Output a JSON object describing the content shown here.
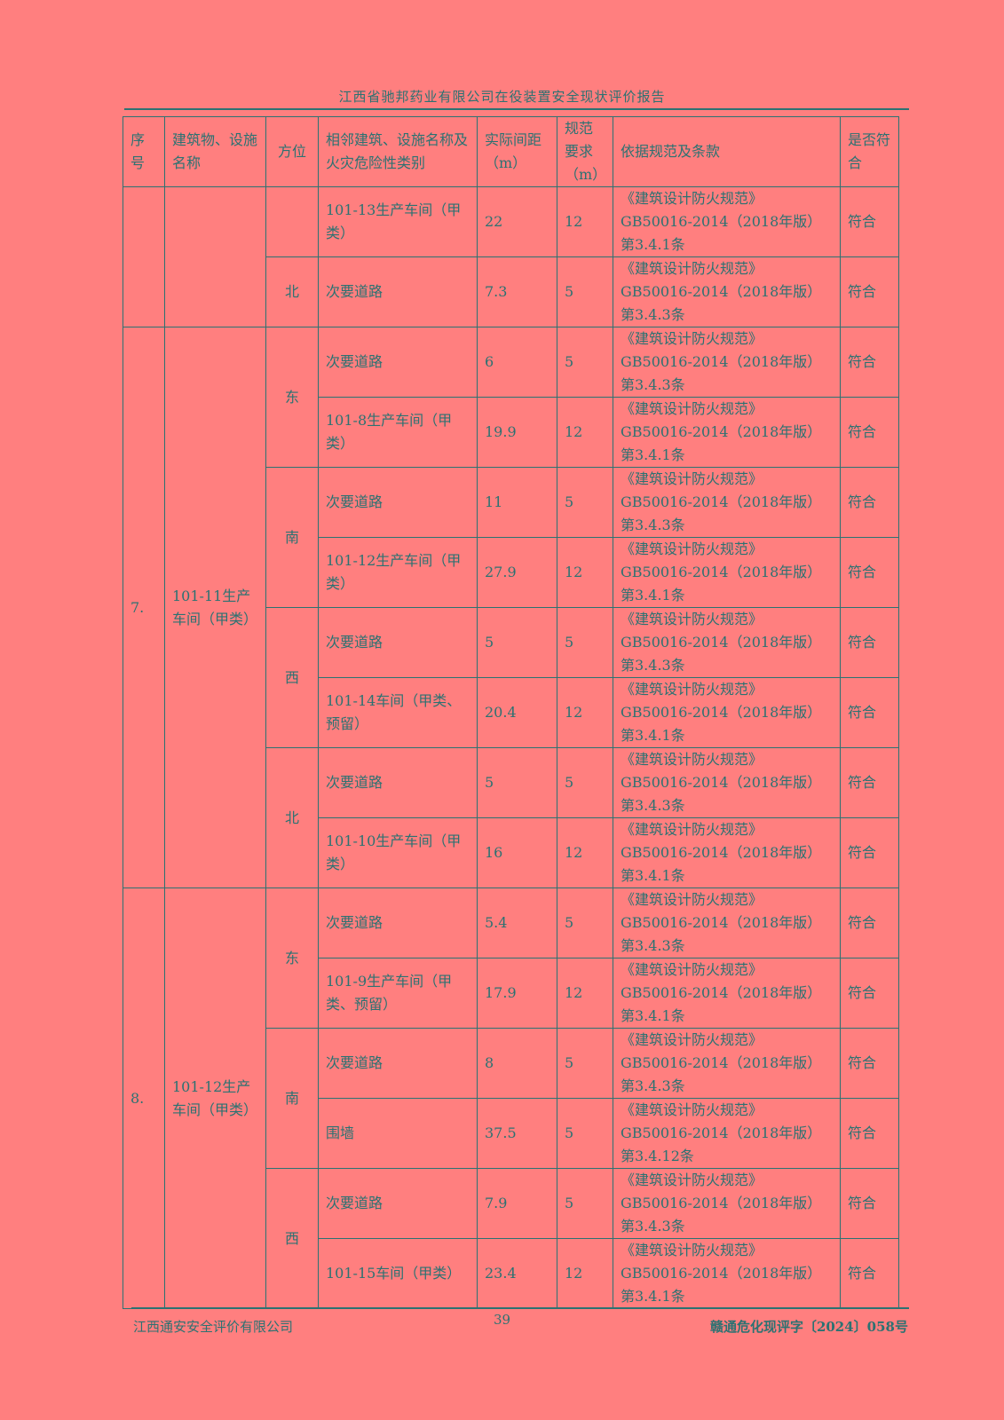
{
  "header": {
    "title": "江西省驰邦药业有限公司在役装置安全现状评价报告"
  },
  "table": {
    "columns": [
      "序号",
      "建筑物、设施名称",
      "方位",
      "相邻建筑、设施名称及火灾危险性类别",
      "实际间距（m）",
      "规范要求（m）",
      "依据规范及条款",
      "是否符合"
    ],
    "groups": [
      {
        "no": "",
        "name": "",
        "directions": [
          {
            "dir": "",
            "rows": [
              {
                "adjacent": "101-13生产车间（甲类）",
                "actual": "22",
                "required": "12",
                "basis": "《建筑设计防火规范》GB50016-2014（2018年版）第3.4.1条",
                "result": "符合"
              }
            ]
          },
          {
            "dir": "北",
            "rows": [
              {
                "adjacent": "次要道路",
                "actual": "7.3",
                "required": "5",
                "basis": "《建筑设计防火规范》GB50016-2014（2018年版）第3.4.3条",
                "result": "符合"
              }
            ]
          }
        ]
      },
      {
        "no": "7.",
        "name": "101-11生产车间（甲类）",
        "directions": [
          {
            "dir": "东",
            "rows": [
              {
                "adjacent": "次要道路",
                "actual": "6",
                "required": "5",
                "basis": "《建筑设计防火规范》GB50016-2014（2018年版）第3.4.3条",
                "result": "符合"
              },
              {
                "adjacent": "101-8生产车间（甲类）",
                "actual": "19.9",
                "required": "12",
                "basis": "《建筑设计防火规范》GB50016-2014（2018年版）第3.4.1条",
                "result": "符合"
              }
            ]
          },
          {
            "dir": "南",
            "rows": [
              {
                "adjacent": "次要道路",
                "actual": "11",
                "required": "5",
                "basis": "《建筑设计防火规范》GB50016-2014（2018年版）第3.4.3条",
                "result": "符合"
              },
              {
                "adjacent": "101-12生产车间（甲类）",
                "actual": "27.9",
                "required": "12",
                "basis": "《建筑设计防火规范》GB50016-2014（2018年版）第3.4.1条",
                "result": "符合"
              }
            ]
          },
          {
            "dir": "西",
            "rows": [
              {
                "adjacent": "次要道路",
                "actual": "5",
                "required": "5",
                "basis": "《建筑设计防火规范》GB50016-2014（2018年版）第3.4.3条",
                "result": "符合"
              },
              {
                "adjacent": "101-14车间（甲类、预留）",
                "actual": "20.4",
                "required": "12",
                "basis": "《建筑设计防火规范》GB50016-2014（2018年版）第3.4.1条",
                "result": "符合"
              }
            ]
          },
          {
            "dir": "北",
            "rows": [
              {
                "adjacent": "次要道路",
                "actual": "5",
                "required": "5",
                "basis": "《建筑设计防火规范》GB50016-2014（2018年版）第3.4.3条",
                "result": "符合"
              },
              {
                "adjacent": "101-10生产车间（甲类）",
                "actual": "16",
                "required": "12",
                "basis": "《建筑设计防火规范》GB50016-2014（2018年版）第3.4.1条",
                "result": "符合"
              }
            ]
          }
        ]
      },
      {
        "no": "8.",
        "name": "101-12生产车间（甲类）",
        "directions": [
          {
            "dir": "东",
            "rows": [
              {
                "adjacent": "次要道路",
                "actual": "5.4",
                "required": "5",
                "basis": "《建筑设计防火规范》GB50016-2014（2018年版）第3.4.3条",
                "result": "符合"
              },
              {
                "adjacent": "101-9生产车间（甲类、预留）",
                "actual": "17.9",
                "required": "12",
                "basis": "《建筑设计防火规范》GB50016-2014（2018年版）第3.4.1条",
                "result": "符合"
              }
            ]
          },
          {
            "dir": "南",
            "rows": [
              {
                "adjacent": "次要道路",
                "actual": "8",
                "required": "5",
                "basis": "《建筑设计防火规范》GB50016-2014（2018年版）第3.4.3条",
                "result": "符合"
              },
              {
                "adjacent": "围墙",
                "actual": "37.5",
                "required": "5",
                "basis": "《建筑设计防火规范》GB50016-2014（2018年版）第3.4.12条",
                "result": "符合"
              }
            ]
          },
          {
            "dir": "西",
            "rows": [
              {
                "adjacent": "次要道路",
                "actual": "7.9",
                "required": "5",
                "basis": "《建筑设计防火规范》GB50016-2014（2018年版）第3.4.3条",
                "result": "符合"
              },
              {
                "adjacent": "101-15车间（甲类）",
                "actual": "23.4",
                "required": "12",
                "basis": "《建筑设计防火规范》GB50016-2014（2018年版）第3.4.1条",
                "result": "符合"
              }
            ]
          }
        ]
      }
    ]
  },
  "footer": {
    "company": "江西通安安全评价有限公司",
    "page": "39",
    "doc_no": "赣通危化现评字〔2024〕058号"
  }
}
